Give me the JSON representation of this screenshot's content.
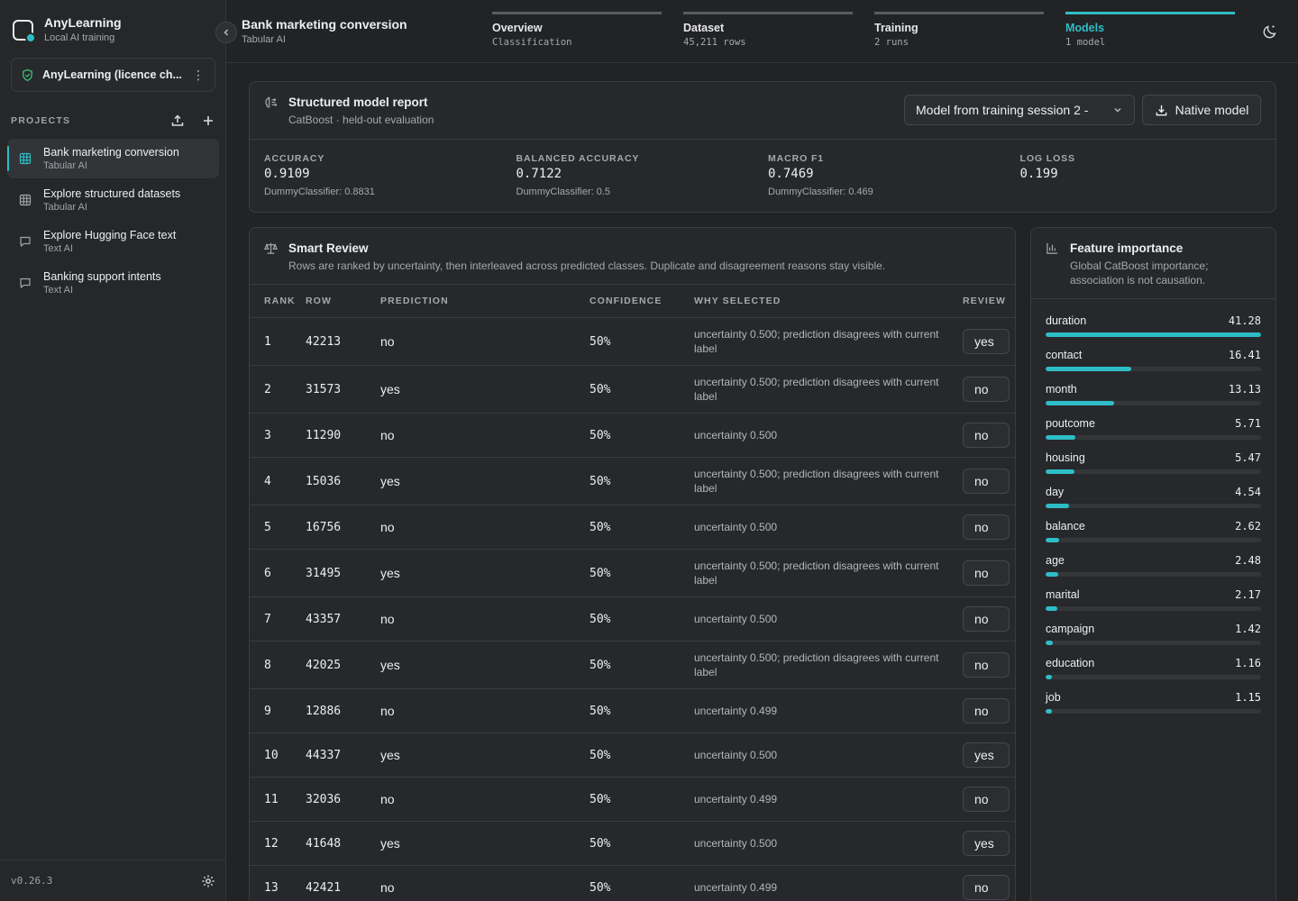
{
  "app": {
    "name": "AnyLearning",
    "subtitle": "Local AI training",
    "version": "v0.26.3"
  },
  "licence": {
    "label": "AnyLearning (licence ch..."
  },
  "projects": {
    "title": "PROJECTS",
    "items": [
      {
        "name": "Bank marketing conversion",
        "type": "Tabular AI",
        "icon": "table-icon",
        "active": true
      },
      {
        "name": "Explore structured datasets",
        "type": "Tabular AI",
        "icon": "table-icon",
        "active": false
      },
      {
        "name": "Explore Hugging Face text",
        "type": "Text AI",
        "icon": "chat-icon",
        "active": false
      },
      {
        "name": "Banking support intents",
        "type": "Text AI",
        "icon": "chat-icon",
        "active": false
      }
    ]
  },
  "header": {
    "title": "Bank marketing conversion",
    "subtitle": "Tabular AI"
  },
  "steps": [
    {
      "label": "Overview",
      "sub": "Classification",
      "active": false
    },
    {
      "label": "Dataset",
      "sub": "45,211 rows",
      "active": false
    },
    {
      "label": "Training",
      "sub": "2 runs",
      "active": false
    },
    {
      "label": "Models",
      "sub": "1 model",
      "active": true
    }
  ],
  "report": {
    "title": "Structured model report",
    "subtitle": "CatBoost · held-out evaluation",
    "model_select": "Model from training session 2 -",
    "native_button": "Native model",
    "metrics": [
      {
        "label": "ACCURACY",
        "value": "0.9109",
        "baseline": "DummyClassifier: 0.8831"
      },
      {
        "label": "BALANCED ACCURACY",
        "value": "0.7122",
        "baseline": "DummyClassifier: 0.5"
      },
      {
        "label": "MACRO F1",
        "value": "0.7469",
        "baseline": "DummyClassifier: 0.469"
      },
      {
        "label": "LOG LOSS",
        "value": "0.199",
        "baseline": ""
      }
    ]
  },
  "review": {
    "title": "Smart Review",
    "subtitle": "Rows are ranked by uncertainty, then interleaved across predicted classes. Duplicate and disagreement reasons stay visible.",
    "columns": {
      "rank": "RANK",
      "row": "ROW",
      "prediction": "PREDICTION",
      "confidence": "CONFIDENCE",
      "why": "WHY SELECTED",
      "review": "REVIEW"
    },
    "rows": [
      {
        "rank": "1",
        "row": "42213",
        "prediction": "no",
        "confidence": "50%",
        "why": "uncertainty 0.500; prediction disagrees with current label",
        "review": "yes"
      },
      {
        "rank": "2",
        "row": "31573",
        "prediction": "yes",
        "confidence": "50%",
        "why": "uncertainty 0.500; prediction disagrees with current label",
        "review": "no"
      },
      {
        "rank": "3",
        "row": "11290",
        "prediction": "no",
        "confidence": "50%",
        "why": "uncertainty 0.500",
        "review": "no"
      },
      {
        "rank": "4",
        "row": "15036",
        "prediction": "yes",
        "confidence": "50%",
        "why": "uncertainty 0.500; prediction disagrees with current label",
        "review": "no"
      },
      {
        "rank": "5",
        "row": "16756",
        "prediction": "no",
        "confidence": "50%",
        "why": "uncertainty 0.500",
        "review": "no"
      },
      {
        "rank": "6",
        "row": "31495",
        "prediction": "yes",
        "confidence": "50%",
        "why": "uncertainty 0.500; prediction disagrees with current label",
        "review": "no"
      },
      {
        "rank": "7",
        "row": "43357",
        "prediction": "no",
        "confidence": "50%",
        "why": "uncertainty 0.500",
        "review": "no"
      },
      {
        "rank": "8",
        "row": "42025",
        "prediction": "yes",
        "confidence": "50%",
        "why": "uncertainty 0.500; prediction disagrees with current label",
        "review": "no"
      },
      {
        "rank": "9",
        "row": "12886",
        "prediction": "no",
        "confidence": "50%",
        "why": "uncertainty 0.499",
        "review": "no"
      },
      {
        "rank": "10",
        "row": "44337",
        "prediction": "yes",
        "confidence": "50%",
        "why": "uncertainty 0.500",
        "review": "yes"
      },
      {
        "rank": "11",
        "row": "32036",
        "prediction": "no",
        "confidence": "50%",
        "why": "uncertainty 0.499",
        "review": "no"
      },
      {
        "rank": "12",
        "row": "41648",
        "prediction": "yes",
        "confidence": "50%",
        "why": "uncertainty 0.500",
        "review": "yes"
      },
      {
        "rank": "13",
        "row": "42421",
        "prediction": "no",
        "confidence": "50%",
        "why": "uncertainty 0.499",
        "review": "no"
      }
    ]
  },
  "features": {
    "title": "Feature importance",
    "subtitle": "Global CatBoost importance; association is not causation.",
    "items": [
      {
        "name": "duration",
        "value": "41.28"
      },
      {
        "name": "contact",
        "value": "16.41"
      },
      {
        "name": "month",
        "value": "13.13"
      },
      {
        "name": "poutcome",
        "value": "5.71"
      },
      {
        "name": "housing",
        "value": "5.47"
      },
      {
        "name": "day",
        "value": "4.54"
      },
      {
        "name": "balance",
        "value": "2.62"
      },
      {
        "name": "age",
        "value": "2.48"
      },
      {
        "name": "marital",
        "value": "2.17"
      },
      {
        "name": "campaign",
        "value": "1.42"
      },
      {
        "name": "education",
        "value": "1.16"
      },
      {
        "name": "job",
        "value": "1.15"
      }
    ]
  },
  "colors": {
    "accent": "#2ebdc7",
    "background": "#222325",
    "card": "#27282b"
  }
}
